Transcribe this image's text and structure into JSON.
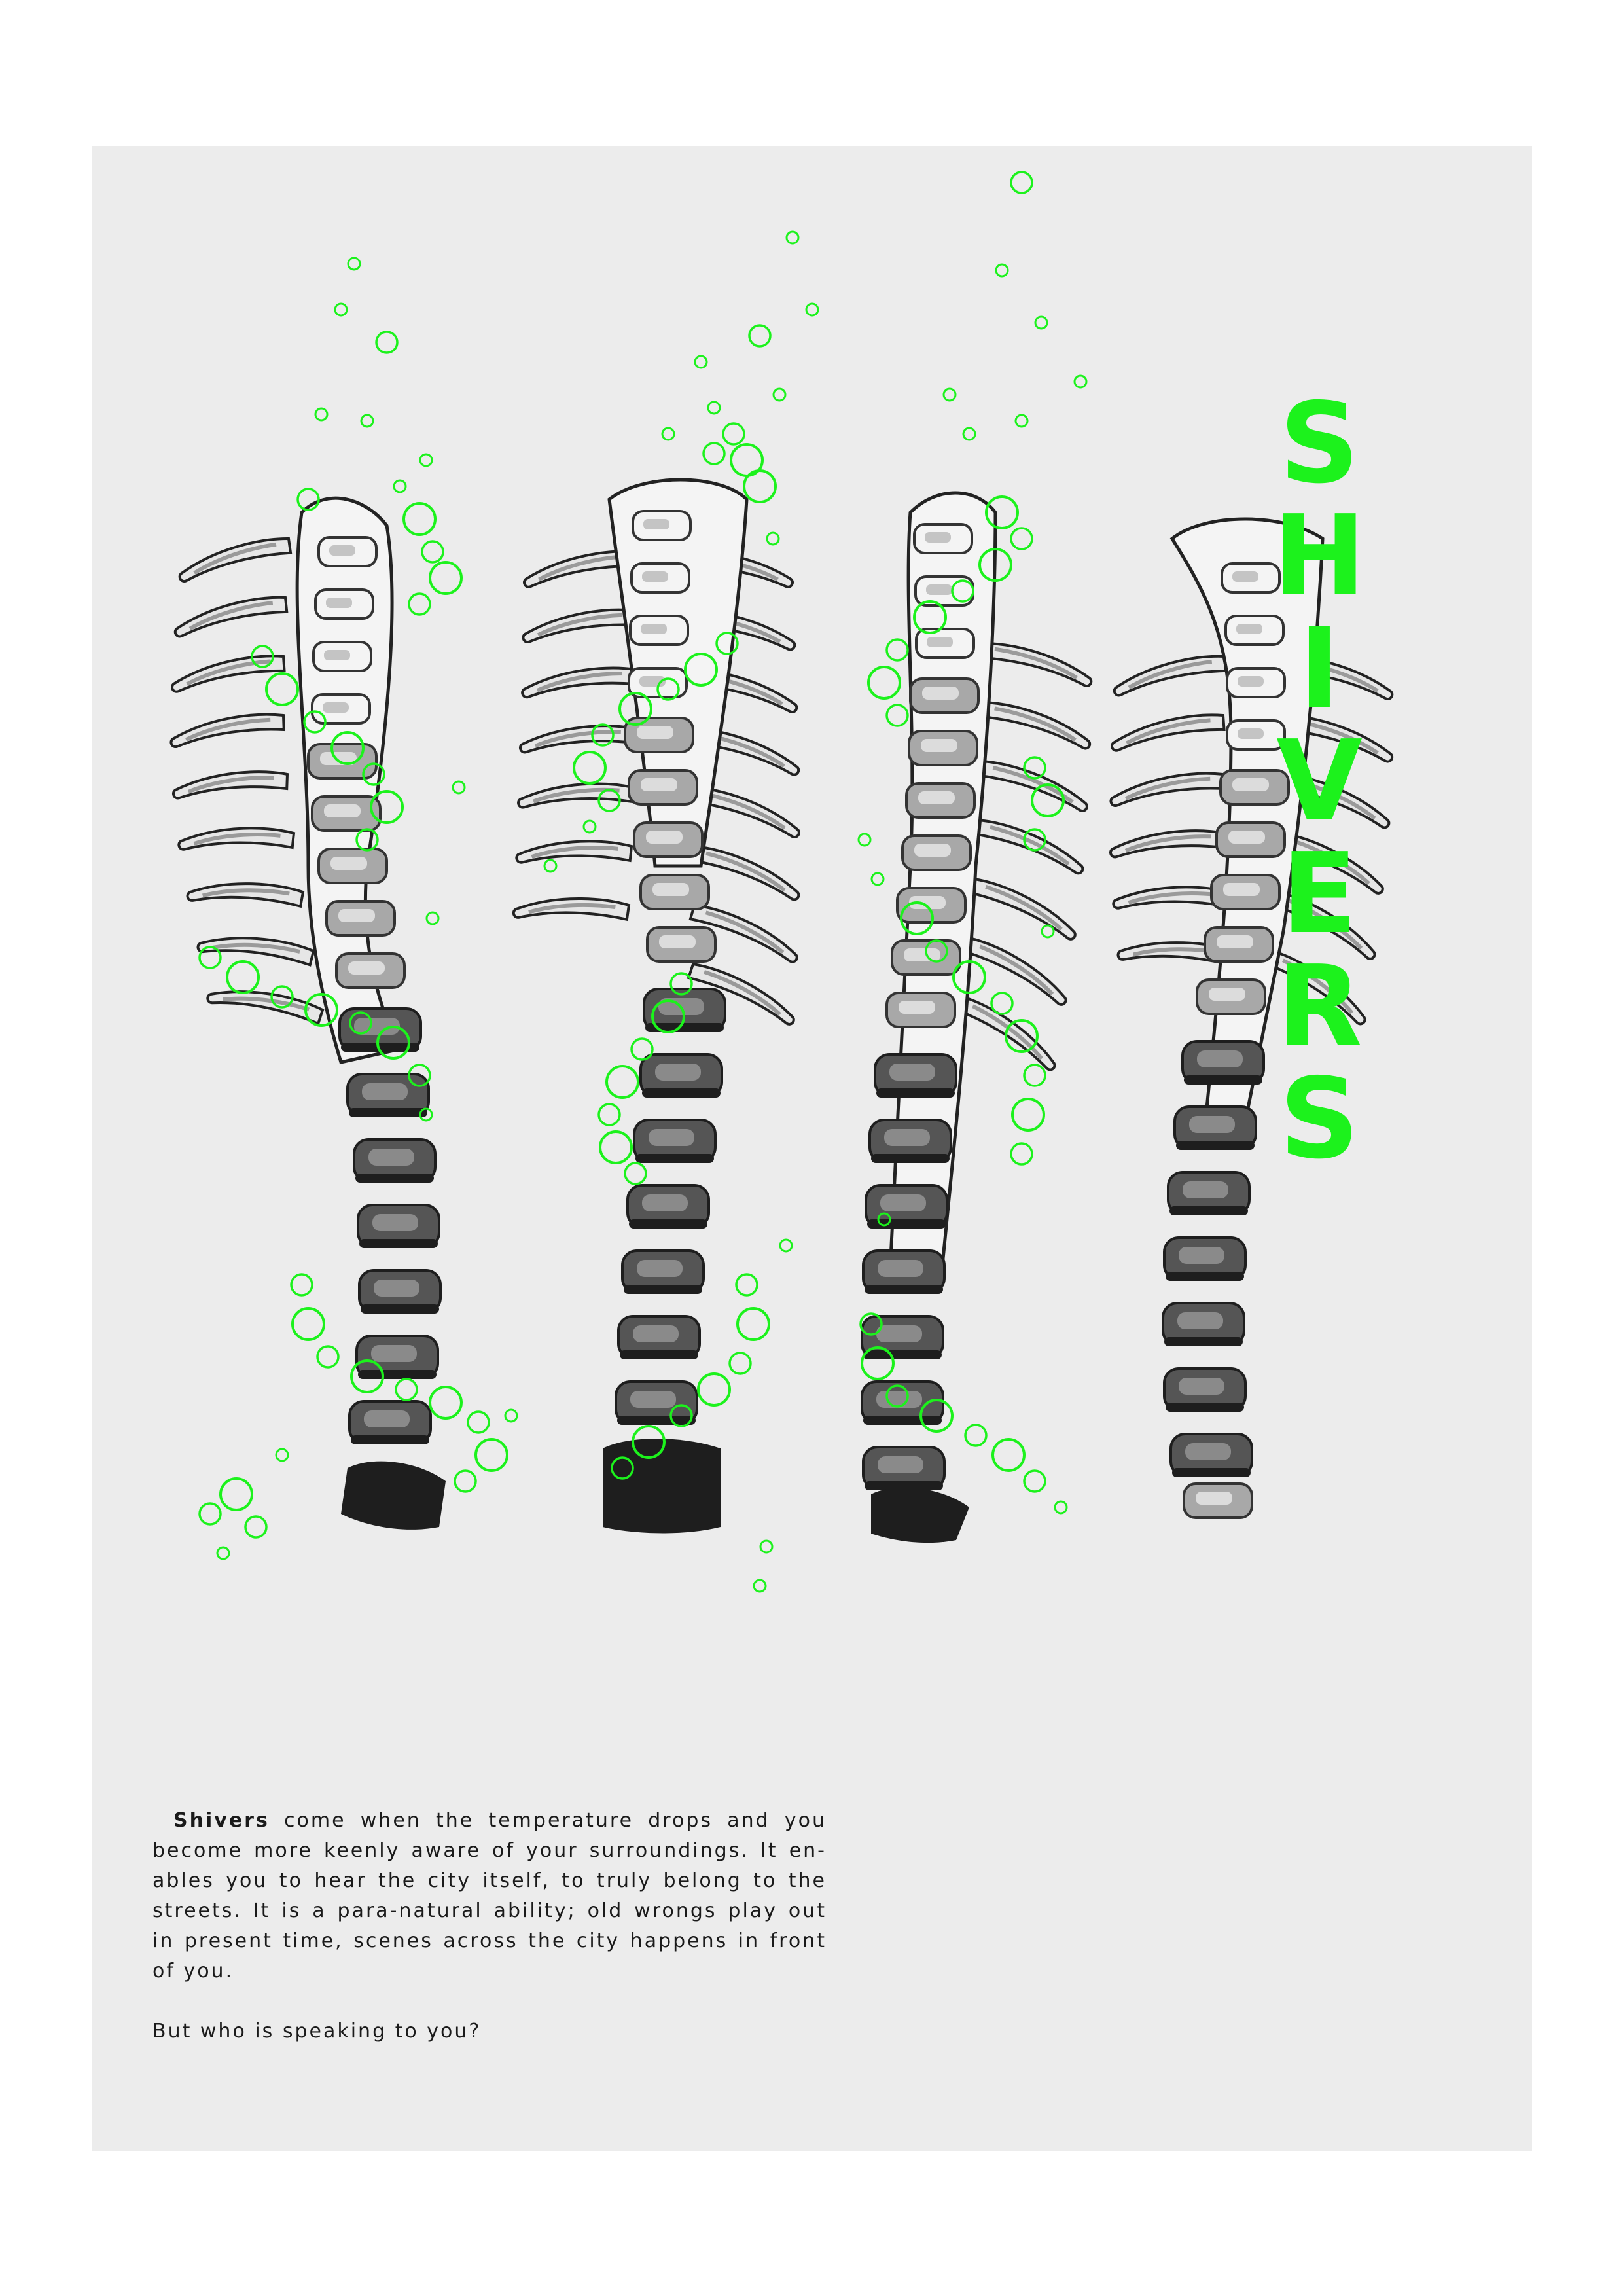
{
  "title": {
    "letters": [
      "S",
      "H",
      "I",
      "V",
      "E",
      "R",
      "S"
    ]
  },
  "text": {
    "lead_bold": "Shivers",
    "lead_rest": " come when the temperature drops and you become more keenly aware of your surroundings. It en-ables you to hear the city itself, to truly belong to the streets. It is a para-natural ability; old wrongs play out in present time, scenes across the city happens in front of you.",
    "question": "But who is speaking to you?"
  },
  "colors": {
    "accent_green": "#1cf21c",
    "page_background": "#ececec",
    "bone_light": "#f4f4f4",
    "bone_mid": "#a8a8a8",
    "bone_dark": "#555555",
    "bone_shadow": "#1e1e1e"
  },
  "illustration": {
    "subject": "four spinal columns with green bubble spirals",
    "count": 4
  }
}
